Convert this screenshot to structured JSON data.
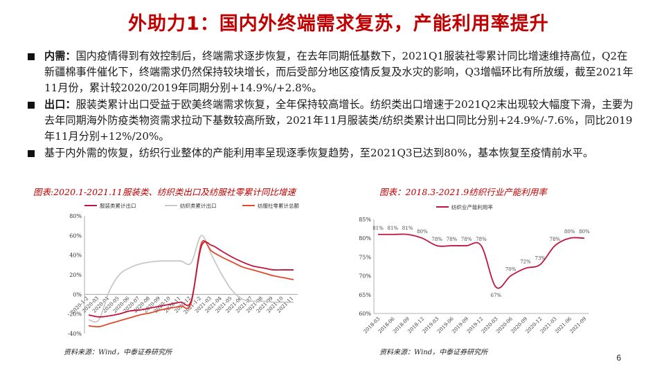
{
  "title": "外助力1：国内外终端需求复苏，产能利用率提升",
  "bullets": [
    {
      "label": "内需：",
      "text": "国内疫情得到有效控制后，终端需求逐步恢复，在去年同期低基数下，2021Q1服装社零累计同比增速维持高位，Q2在新疆棉事件催化下，终端需求仍然保持较块增长，而后受部分地区疫情反复及水灾的影响，Q3增幅环比有所放缓，截至2021年11月份，累计较2020/2019年同期分别+14.9%/+2.8%。"
    },
    {
      "label": "出口：",
      "text": "服装类累计出口受益于欧美终端需求恢复，全年保持较高增长。纺织类出口增速于2021Q2末出现较大幅度下滑，主要为去年同期海外防疫类物资需求拉动下基数较高所致，2021年11月服装类/纺织类累计出口同比分别+24.9%/-7.6%，同比2019年11月分别+12%/20%。"
    },
    {
      "label": "",
      "text": "基于内外需的恢复，纺织行业整体的产能利用率呈现逐季恢复趋势，至2021Q3已达到80%，基本恢复至疫情前水平。"
    }
  ],
  "chart1": {
    "caption": "图表:2020.1-2021.11服装类、纺织类出口及纺服社零累计同比增速",
    "source": "资料来源：Wind，中泰证券研究所"
  },
  "chart2": {
    "caption": "图表：2018.3-2021.9纺织行业产能利用率",
    "source": "资料来源：Wind，中泰证券研究所"
  },
  "page_number": "6",
  "chart_data": [
    {
      "type": "line",
      "x": [
        "2020-1-2",
        "2020-03",
        "2020-04",
        "2020-05",
        "2020-06",
        "2020-07",
        "2020-08",
        "2020-09",
        "2020-10",
        "2020-11",
        "2020-12",
        "2021-1-2",
        "2021-03",
        "2021-04",
        "2021-05",
        "2021-06",
        "2021-07",
        "2021-08",
        "2021-09",
        "2021-10",
        "2021-11"
      ],
      "ylim": [
        -40,
        80
      ],
      "yticks": [
        "-40%",
        "-20%",
        "0%",
        "20%",
        "40%",
        "60%",
        "80%"
      ],
      "ytick_values": [
        -40,
        -20,
        0,
        20,
        40,
        60,
        80
      ],
      "series": [
        {
          "name": "服装类累计出口",
          "color": "#c0143c",
          "values": [
            -21,
            -23,
            -22,
            -20,
            -17,
            -16,
            -14,
            -12,
            -10,
            -8,
            -7,
            49,
            50,
            44,
            38,
            33,
            29,
            27,
            25,
            25,
            25
          ]
        },
        {
          "name": "纺织类累计出口",
          "color": "#c8c8c8",
          "values": [
            -26,
            -26,
            3,
            20,
            27,
            31,
            33,
            34,
            34,
            34,
            32,
            60,
            40,
            20,
            4,
            -5,
            -7,
            -7,
            -8,
            -8,
            -8
          ]
        },
        {
          "name": "纺服社零累计总额",
          "color": "#e0482a",
          "values": [
            -32,
            -33,
            -30,
            -27,
            -24,
            -21,
            -19,
            -16,
            -14,
            -12,
            -9,
            52,
            44,
            38,
            33,
            28,
            25,
            22,
            19,
            17,
            15
          ]
        }
      ]
    },
    {
      "type": "line",
      "x": [
        "2018-03",
        "2018-06",
        "2018-09",
        "2018-12",
        "2019-03",
        "2019-06",
        "2019-09",
        "2019-12",
        "2020-03",
        "2020-06",
        "2020-09",
        "2020-12",
        "2021-03",
        "2021-06",
        "2021-09"
      ],
      "ylim": [
        60,
        85
      ],
      "yticks": [
        "60%",
        "65%",
        "70%",
        "75%",
        "80%",
        "85%"
      ],
      "ytick_values": [
        60,
        65,
        70,
        75,
        80,
        85
      ],
      "series": [
        {
          "name": "纺织业产能利用率",
          "color": "#c0143c",
          "values": [
            81,
            81,
            81,
            80,
            78,
            78,
            78,
            78,
            67,
            70,
            72,
            73,
            78,
            80,
            80
          ],
          "data_labels": [
            "81%",
            "81%",
            "81%",
            "80%",
            "78%",
            "78%",
            "78%",
            "78%",
            "67%",
            "70%",
            "72%",
            "73%",
            "78%",
            "80%",
            "80%"
          ]
        }
      ]
    }
  ]
}
